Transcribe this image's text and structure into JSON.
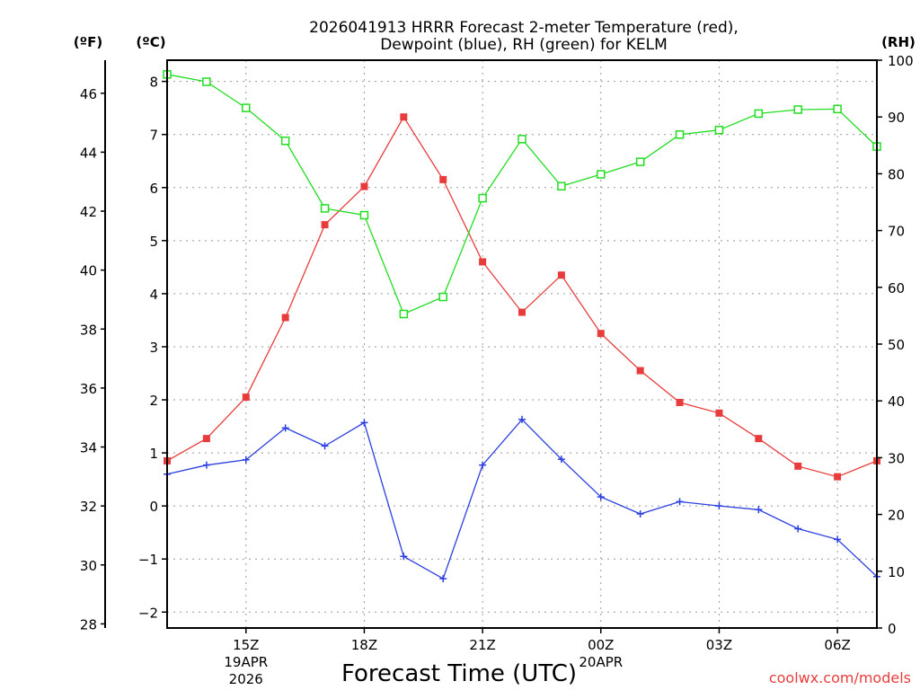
{
  "chart_data": {
    "type": "line",
    "title_line1": "2026041913 HRRR Forecast 2-meter Temperature (red),",
    "title_line2": "Dewpoint (blue), RH (green) for KELM",
    "xlabel": "Forecast Time (UTC)",
    "y_left_f_label": "(ºF)",
    "y_left_c_label": "(ºC)",
    "y_right_label": "(RH)",
    "watermark": "coolwx.com/models",
    "x": [
      13,
      14,
      15,
      16,
      17,
      18,
      19,
      20,
      21,
      22,
      23,
      24,
      25,
      26,
      27,
      28,
      29,
      30,
      31
    ],
    "xlim": [
      13,
      31
    ],
    "x_ticks": [
      {
        "x": 15,
        "label": "15Z",
        "sub1": "19APR",
        "sub2": "2026"
      },
      {
        "x": 18,
        "label": "18Z",
        "sub1": "",
        "sub2": ""
      },
      {
        "x": 21,
        "label": "21Z",
        "sub1": "",
        "sub2": ""
      },
      {
        "x": 24,
        "label": "00Z",
        "sub1": "20APR",
        "sub2": ""
      },
      {
        "x": 27,
        "label": "03Z",
        "sub1": "",
        "sub2": ""
      },
      {
        "x": 30,
        "label": "06Z",
        "sub1": "",
        "sub2": ""
      }
    ],
    "ylim_c": [
      -2.3,
      8.4
    ],
    "ylim_rh": [
      0,
      100
    ],
    "y_ticks_c": [
      "8",
      "7",
      "6",
      "5",
      "4",
      "3",
      "2",
      "1",
      "0",
      "−1",
      "−2"
    ],
    "y_ticks_c_values": [
      8,
      7,
      6,
      5,
      4,
      3,
      2,
      1,
      0,
      -1,
      -2
    ],
    "y_ticks_f": [
      "46",
      "44",
      "42",
      "40",
      "38",
      "36",
      "34",
      "32",
      "30",
      "28"
    ],
    "y_ticks_f_values": [
      46,
      44,
      42,
      40,
      38,
      36,
      34,
      32,
      30,
      28
    ],
    "y_ticks_rh": [
      "100",
      "90",
      "80",
      "70",
      "60",
      "50",
      "40",
      "30",
      "20",
      "10",
      "0"
    ],
    "y_ticks_rh_values": [
      100,
      90,
      80,
      70,
      60,
      50,
      40,
      30,
      20,
      10,
      0
    ],
    "series": [
      {
        "name": "Temperature",
        "axis": "c",
        "color": "#e83c3c",
        "marker": "filled-square",
        "values": [
          0.85,
          1.27,
          2.05,
          3.55,
          5.3,
          6.02,
          7.33,
          6.15,
          4.6,
          3.65,
          4.35,
          3.25,
          2.55,
          1.95,
          1.75,
          1.27,
          0.75,
          0.55,
          0.85
        ]
      },
      {
        "name": "Dewpoint",
        "axis": "c",
        "color": "#2b3fe0",
        "marker": "plus",
        "values": [
          0.6,
          0.77,
          0.87,
          1.47,
          1.13,
          1.57,
          -0.95,
          -1.37,
          0.77,
          1.63,
          0.88,
          0.17,
          -0.15,
          0.08,
          0.0,
          -0.07,
          -0.43,
          -0.63,
          -1.33
        ]
      },
      {
        "name": "RH",
        "axis": "rh",
        "color": "#22dd22",
        "marker": "open-square",
        "values": [
          97.5,
          96.2,
          91.6,
          85.8,
          73.9,
          72.7,
          55.3,
          58.3,
          75.7,
          86.1,
          77.8,
          79.9,
          82.1,
          86.9,
          87.7,
          90.6,
          91.3,
          91.4,
          84.8
        ]
      }
    ]
  }
}
